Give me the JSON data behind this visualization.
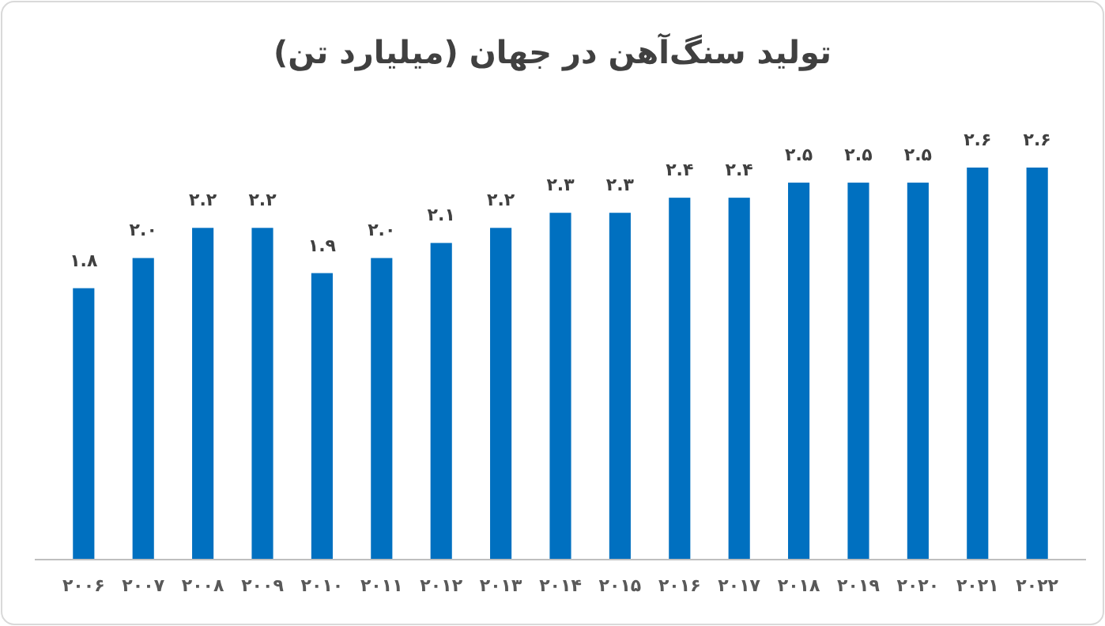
{
  "chart_data": {
    "type": "bar",
    "title": "تولید سنگ‌آهن در جهان (میلیارد تن)",
    "categories": [
      "۲۰۰۶",
      "۲۰۰۷",
      "۲۰۰۸",
      "۲۰۰۹",
      "۲۰۱۰",
      "۲۰۱۱",
      "۲۰۱۲",
      "۲۰۱۳",
      "۲۰۱۴",
      "۲۰۱۵",
      "۲۰۱۶",
      "۲۰۱۷",
      "۲۰۱۸",
      "۲۰۱۹",
      "۲۰۲۰",
      "۲۰۲۱",
      "۲۰۲۲"
    ],
    "values": [
      1.8,
      2.0,
      2.2,
      2.2,
      1.9,
      2.0,
      2.1,
      2.2,
      2.3,
      2.3,
      2.4,
      2.4,
      2.5,
      2.5,
      2.5,
      2.6,
      2.6
    ],
    "value_labels": [
      "۱.۸",
      "۲.۰",
      "۲.۲",
      "۲.۲",
      "۱.۹",
      "۲.۰",
      "۲.۱",
      "۲.۲",
      "۲.۳",
      "۲.۳",
      "۲.۴",
      "۲.۴",
      "۲.۵",
      "۲.۵",
      "۲.۵",
      "۲.۶",
      "۲.۶"
    ],
    "color": "#0070c0"
  }
}
